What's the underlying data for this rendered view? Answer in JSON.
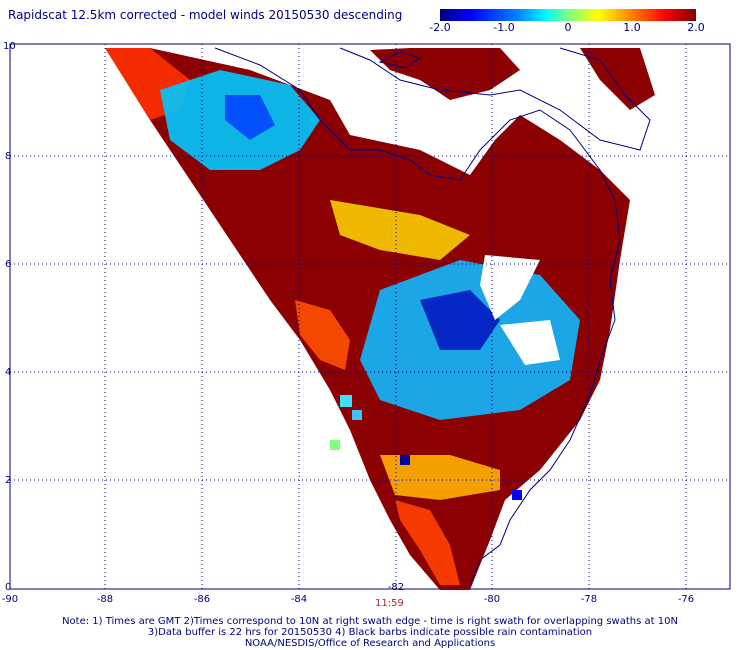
{
  "title": "Rapidscat 12.5km corrected - model winds 20150530 descending",
  "colorbar": {
    "ticks": [
      "-2.0",
      "-1.0",
      "0",
      "1.0",
      "2.0"
    ],
    "values": [
      -2.0,
      -1.0,
      0.0,
      1.0,
      2.0
    ],
    "colors": [
      "#000080",
      "#0000ff",
      "#0080ff",
      "#00ffff",
      "#80ff80",
      "#ffff00",
      "#ff8000",
      "#ff0000",
      "#800000"
    ]
  },
  "map": {
    "x_ticks": [
      "-90",
      "-88",
      "-86",
      "-84",
      "-82",
      "-80",
      "-78",
      "-76"
    ],
    "y_ticks": [
      "0",
      "2",
      "4",
      "6",
      "8",
      "10"
    ],
    "lon_range": [
      -90,
      -75
    ],
    "lat_range": [
      0,
      10.5
    ],
    "grid": "dotted",
    "fill_color_dominant": "#8b0000",
    "coastline_color": "#000080"
  },
  "time_label": "11:59",
  "footer": {
    "line1": "Note: 1) Times are GMT 2)Times correspond to 10N at right swath edge - time is right swath for overlapping swaths at 10N",
    "line2": "3)Data buffer is 22 hrs for 20150530 4) Black barbs indicate possible rain contamination",
    "line3": "NOAA/NESDIS/Office of Research and Applications"
  }
}
